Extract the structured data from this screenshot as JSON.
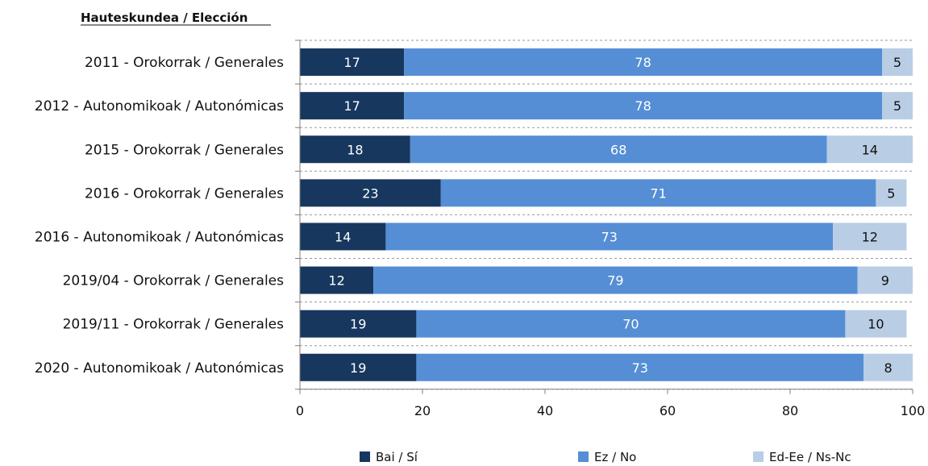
{
  "chart_data": {
    "type": "bar",
    "orientation": "horizontal",
    "stacked": true,
    "axis_header": "Hauteskundea / Elección",
    "categories": [
      "2011 - Orokorrak / Generales",
      "2012 - Autonomikoak / Autonómicas",
      "2015 - Orokorrak / Generales",
      "2016 - Orokorrak / Generales",
      "2016 - Autonomikoak / Autonómicas",
      "2019/04 - Orokorrak / Generales",
      "2019/11 - Orokorrak / Generales",
      "2020 - Autonomikoak / Autonómicas"
    ],
    "series": [
      {
        "name": "Bai / Sí",
        "color": "#17375e",
        "label_color": "#ffffff",
        "values": [
          17,
          17,
          18,
          23,
          14,
          12,
          19,
          19
        ]
      },
      {
        "name": "Ez / No",
        "color": "#558ed5",
        "label_color": "#ffffff",
        "values": [
          78,
          78,
          68,
          71,
          73,
          79,
          70,
          73
        ]
      },
      {
        "name": "Ed-Ee / Ns-Nc",
        "color": "#b9cde5",
        "label_color": "#111111",
        "values": [
          5,
          5,
          14,
          5,
          12,
          9,
          10,
          8
        ]
      }
    ],
    "xlim": [
      0,
      100
    ],
    "xticks": [
      0,
      20,
      40,
      60,
      80,
      100
    ],
    "grid": "horizontal dashed separators",
    "legend_position": "bottom"
  }
}
